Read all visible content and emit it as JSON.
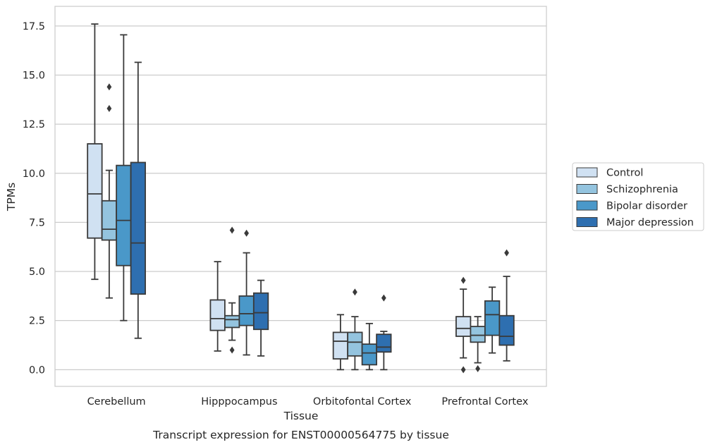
{
  "chart_data": {
    "type": "box",
    "title": "",
    "caption": "Transcript expression for ENST00000564775 by tissue",
    "xlabel": "Tissue",
    "ylabel": "TPMs",
    "ylim": [
      -0.85,
      18.5
    ],
    "yticks": [
      0.0,
      2.5,
      5.0,
      7.5,
      10.0,
      12.5,
      15.0,
      17.5
    ],
    "ytick_labels": [
      "0.0",
      "2.5",
      "5.0",
      "7.5",
      "10.0",
      "12.5",
      "15.0",
      "17.5"
    ],
    "grid": "horizontal",
    "legend_position": "right",
    "categories": [
      "Cerebellum",
      "Hipppocampus",
      "Orbitofontal Cortex",
      "Prefrontal Cortex"
    ],
    "series": [
      {
        "name": "Control",
        "color": "#d0e1f2",
        "boxes": [
          {
            "whislo": 4.6,
            "q1": 6.7,
            "med": 8.95,
            "q3": 11.5,
            "whishi": 17.6,
            "fliers": []
          },
          {
            "whislo": 0.95,
            "q1": 2.0,
            "med": 2.6,
            "q3": 3.55,
            "whishi": 5.5,
            "fliers": []
          },
          {
            "whislo": 0.0,
            "q1": 0.55,
            "med": 1.45,
            "q3": 1.9,
            "whishi": 2.8,
            "fliers": []
          },
          {
            "whislo": 0.6,
            "q1": 1.7,
            "med": 2.1,
            "q3": 2.7,
            "whishi": 4.1,
            "fliers": [
              4.55,
              0.0
            ]
          }
        ]
      },
      {
        "name": "Schizophrenia",
        "color": "#94c4df",
        "boxes": [
          {
            "whislo": 3.65,
            "q1": 6.6,
            "med": 7.15,
            "q3": 8.6,
            "whishi": 10.15,
            "fliers": [
              14.4,
              13.3
            ]
          },
          {
            "whislo": 1.5,
            "q1": 2.15,
            "med": 2.55,
            "q3": 2.75,
            "whishi": 3.4,
            "fliers": [
              7.1,
              1.0
            ]
          },
          {
            "whislo": 0.0,
            "q1": 0.7,
            "med": 1.4,
            "q3": 1.9,
            "whishi": 2.7,
            "fliers": [
              3.95
            ]
          },
          {
            "whislo": 0.35,
            "q1": 1.4,
            "med": 1.75,
            "q3": 2.2,
            "whishi": 2.7,
            "fliers": [
              0.05
            ]
          }
        ]
      },
      {
        "name": "Bipolar disorder",
        "color": "#4a98c9",
        "boxes": [
          {
            "whislo": 2.5,
            "q1": 5.3,
            "med": 7.6,
            "q3": 10.4,
            "whishi": 17.05,
            "fliers": []
          },
          {
            "whislo": 0.75,
            "q1": 2.25,
            "med": 2.85,
            "q3": 3.75,
            "whishi": 5.95,
            "fliers": [
              6.95
            ]
          },
          {
            "whislo": 0.0,
            "q1": 0.25,
            "med": 0.85,
            "q3": 1.3,
            "whishi": 2.35,
            "fliers": []
          },
          {
            "whislo": 0.85,
            "q1": 1.75,
            "med": 2.8,
            "q3": 3.5,
            "whishi": 4.2,
            "fliers": []
          }
        ]
      },
      {
        "name": "Major depression",
        "color": "#2e6fb0",
        "boxes": [
          {
            "whislo": 1.6,
            "q1": 3.85,
            "med": 6.45,
            "q3": 10.55,
            "whishi": 15.65,
            "fliers": []
          },
          {
            "whislo": 0.7,
            "q1": 2.05,
            "med": 2.9,
            "q3": 3.9,
            "whishi": 4.55,
            "fliers": []
          },
          {
            "whislo": 0.0,
            "q1": 0.9,
            "med": 1.15,
            "q3": 1.8,
            "whishi": 1.95,
            "fliers": [
              3.65
            ]
          },
          {
            "whislo": 0.45,
            "q1": 1.25,
            "med": 1.7,
            "q3": 2.75,
            "whishi": 4.75,
            "fliers": [
              5.95
            ]
          }
        ]
      }
    ]
  }
}
